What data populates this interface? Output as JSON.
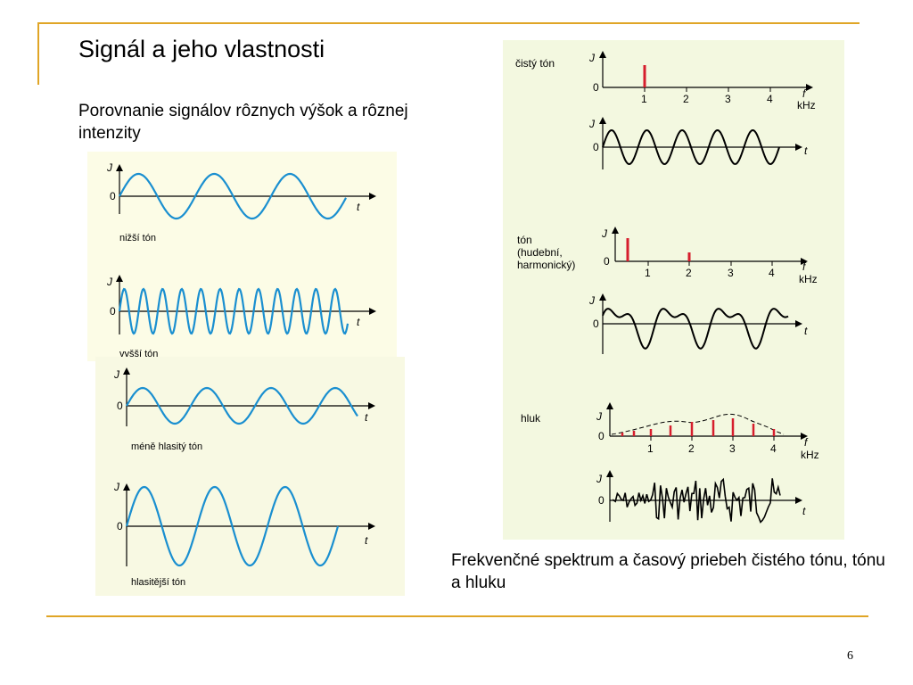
{
  "slide": {
    "title": "Signál a jeho vlastnosti",
    "subtitle": "Porovnanie signálov rôznych výšok a rôznej intenzity",
    "caption": "Frekvenčné spektrum a časový priebeh čistého tónu, tónu a hluku",
    "page_number": "6",
    "accent_color": "#e0a526",
    "wave_color": "#1a8fd0",
    "spike_color": "#d61e2d"
  },
  "axis": {
    "y": "J",
    "zero": "0",
    "t": "t",
    "f": "f",
    "unit": "kHz"
  },
  "left_panels": [
    {
      "label": "nižší tón"
    },
    {
      "label": "vyšší tón"
    },
    {
      "label": "méně hlasitý tón"
    },
    {
      "label": "hlasitější tón"
    }
  ],
  "right_panels": {
    "pure": {
      "label": "čistý tón",
      "ticks": [
        "1",
        "2",
        "3",
        "4"
      ]
    },
    "tone": {
      "label_lines": [
        "tón",
        "(hudební,",
        "harmonický)"
      ],
      "ticks": [
        "1",
        "2",
        "3",
        "4"
      ]
    },
    "noise": {
      "label": "hluk",
      "ticks": [
        "1",
        "2",
        "3",
        "4"
      ]
    }
  }
}
